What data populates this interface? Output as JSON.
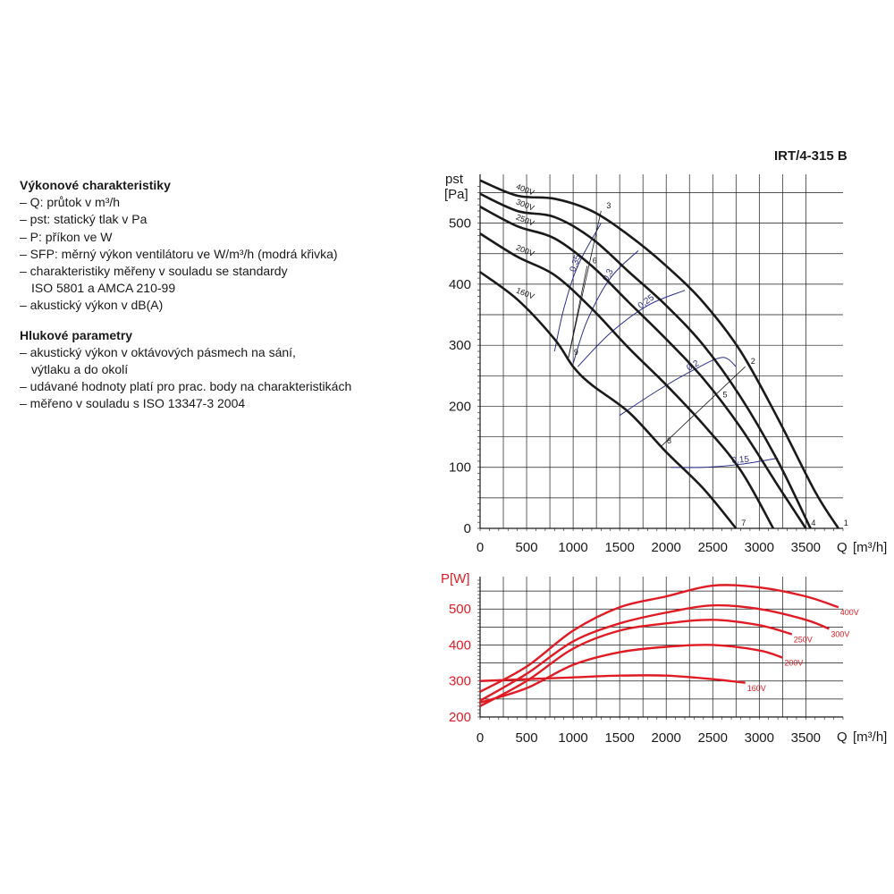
{
  "legend": {
    "title1": "Výkonové charakteristiky",
    "items1": [
      "– Q: průtok v m³/h",
      "– pst: statický tlak v Pa",
      "– P: příkon ve W",
      "– SFP: měrný výkon ventilátoru ve W/m³/h (modrá křivka)",
      "– charakteristiky měřeny v souladu se standardy",
      "ISO 5801 a AMCA 210-99",
      "– akustický výkon v dB(A)"
    ],
    "title2": "Hlukové parametry",
    "items2": [
      "– akustický výkon v oktávových pásmech na sání,",
      "výtlaku a do okolí",
      "– udávané hodnoty platí pro prac. body na charakteristikách",
      "– měřeno v souladu s ISO 13347-3 2004"
    ]
  },
  "model": "IRT/4-315 B",
  "colors": {
    "pressure": "#1a1a1a",
    "power": "#e01b24",
    "sfp": "#2b2f8c",
    "grid": "#1a1a1a"
  },
  "chart_data": [
    {
      "type": "line",
      "ylabel_top": "pst",
      "ylabel_unit": "[Pa]",
      "xlabel": "Q",
      "xunit": "[m³/h]",
      "xticks": [
        "0",
        "500",
        "1000",
        "1500",
        "2000",
        "2500",
        "3000",
        "3500"
      ],
      "yticks": [
        "0",
        "100",
        "200",
        "300",
        "400",
        "500"
      ],
      "xlim": [
        0,
        3900
      ],
      "ylim": [
        0,
        580
      ],
      "grid": true,
      "series": [
        {
          "name": "400V",
          "x": [
            0,
            400,
            800,
            1200,
            1600,
            2000,
            2400,
            2800,
            3200,
            3600,
            3850
          ],
          "y": [
            570,
            545,
            540,
            520,
            480,
            430,
            370,
            290,
            180,
            60,
            0
          ]
        },
        {
          "name": "300V",
          "x": [
            0,
            400,
            800,
            1200,
            1600,
            2000,
            2400,
            2800,
            3200,
            3550
          ],
          "y": [
            548,
            520,
            510,
            475,
            420,
            365,
            300,
            215,
            110,
            0
          ]
        },
        {
          "name": "250V",
          "x": [
            0,
            400,
            800,
            1200,
            1600,
            2000,
            2400,
            2800,
            3200,
            3500
          ],
          "y": [
            527,
            495,
            475,
            430,
            370,
            310,
            245,
            165,
            70,
            0
          ]
        },
        {
          "name": "200V",
          "x": [
            0,
            400,
            800,
            1200,
            1600,
            2000,
            2400,
            2800,
            3150
          ],
          "y": [
            483,
            445,
            415,
            360,
            295,
            235,
            170,
            95,
            0
          ]
        },
        {
          "name": "160V",
          "x": [
            0,
            400,
            800,
            1000,
            1200,
            1600,
            2000,
            2400,
            2750
          ],
          "y": [
            420,
            375,
            310,
            265,
            235,
            190,
            125,
            65,
            0
          ]
        }
      ],
      "sfp_curves": [
        {
          "label": "0,35",
          "x": [
            800,
            900,
            1050,
            1300
          ],
          "y": [
            290,
            360,
            430,
            500
          ]
        },
        {
          "label": "0,3",
          "x": [
            1000,
            1150,
            1400,
            1700
          ],
          "y": [
            270,
            340,
            410,
            455
          ]
        },
        {
          "label": "0,25",
          "x": [
            1050,
            1400,
            1800,
            2200
          ],
          "y": [
            265,
            320,
            365,
            390
          ]
        },
        {
          "label": "0,2",
          "x": [
            1500,
            1900,
            2300,
            2600,
            2750
          ],
          "y": [
            185,
            225,
            260,
            280,
            265
          ]
        },
        {
          "label": "0,15",
          "x": [
            2050,
            2400,
            2800,
            3200
          ],
          "y": [
            100,
            100,
            105,
            115
          ]
        }
      ],
      "points": [
        {
          "label": "1",
          "x": 3850,
          "y": 0
        },
        {
          "label": "2",
          "x": 2850,
          "y": 265
        },
        {
          "label": "3",
          "x": 1300,
          "y": 520
        },
        {
          "label": "4",
          "x": 3500,
          "y": 0
        },
        {
          "label": "5",
          "x": 2550,
          "y": 210
        },
        {
          "label": "6",
          "x": 1150,
          "y": 430
        },
        {
          "label": "7",
          "x": 2750,
          "y": 0
        },
        {
          "label": "8",
          "x": 1950,
          "y": 135
        },
        {
          "label": "9",
          "x": 950,
          "y": 280
        }
      ]
    },
    {
      "type": "line",
      "ylabel": "P[W]",
      "xlabel": "Q",
      "xunit": "[m³/h]",
      "xticks": [
        "0",
        "500",
        "1000",
        "1500",
        "2000",
        "2500",
        "3000",
        "3500"
      ],
      "yticks": [
        "200",
        "300",
        "400",
        "500"
      ],
      "xlim": [
        0,
        3900
      ],
      "ylim": [
        200,
        590
      ],
      "grid": true,
      "series": [
        {
          "name": "400V",
          "x": [
            0,
            500,
            1000,
            1500,
            2000,
            2500,
            3000,
            3500,
            3850
          ],
          "y": [
            270,
            340,
            440,
            505,
            535,
            565,
            560,
            535,
            505
          ]
        },
        {
          "name": "300V",
          "x": [
            0,
            500,
            1000,
            1500,
            2000,
            2500,
            3000,
            3500,
            3750
          ],
          "y": [
            245,
            320,
            410,
            460,
            490,
            510,
            500,
            470,
            445
          ]
        },
        {
          "name": "250V",
          "x": [
            0,
            500,
            1000,
            1500,
            2000,
            2500,
            3000,
            3350
          ],
          "y": [
            230,
            300,
            390,
            440,
            460,
            470,
            455,
            430
          ]
        },
        {
          "name": "200V",
          "x": [
            0,
            500,
            1000,
            1500,
            2000,
            2500,
            3000,
            3250
          ],
          "y": [
            240,
            280,
            345,
            380,
            395,
            400,
            385,
            365
          ]
        },
        {
          "name": "160V",
          "x": [
            0,
            500,
            1000,
            1500,
            2000,
            2500,
            2850
          ],
          "y": [
            300,
            305,
            310,
            315,
            315,
            305,
            295
          ]
        }
      ]
    }
  ]
}
